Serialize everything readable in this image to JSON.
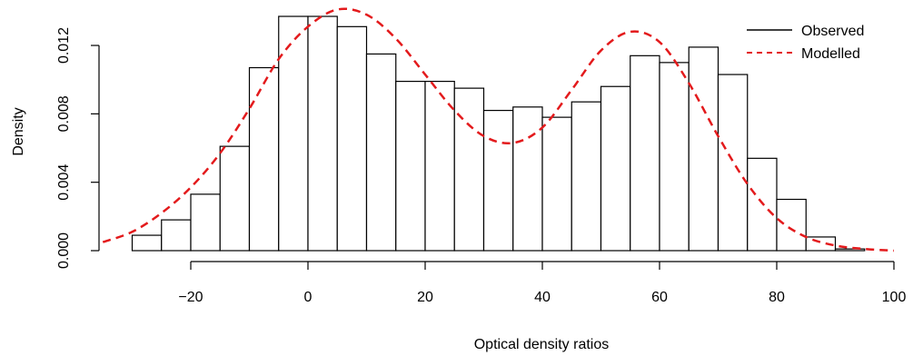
{
  "chart_data": {
    "type": "histogram",
    "title": "",
    "xlabel": "Optical density ratios",
    "ylabel": "Density",
    "xlim": [
      -35,
      100
    ],
    "ylim": [
      0,
      0.014
    ],
    "x_ticks": [
      -20,
      0,
      20,
      40,
      60,
      80,
      100
    ],
    "x_tick_labels": [
      "−20",
      "0",
      "20",
      "40",
      "60",
      "80",
      "100"
    ],
    "y_ticks": [
      0,
      0.004,
      0.008,
      0.012
    ],
    "y_tick_labels": [
      "0.000",
      "0.004",
      "0.008",
      "0.012"
    ],
    "bin_width": 5,
    "bins": [
      {
        "x0": -30,
        "x1": -25,
        "density": 0.0009
      },
      {
        "x0": -25,
        "x1": -20,
        "density": 0.0018
      },
      {
        "x0": -20,
        "x1": -15,
        "density": 0.0033
      },
      {
        "x0": -15,
        "x1": -10,
        "density": 0.0061
      },
      {
        "x0": -10,
        "x1": -5,
        "density": 0.0107
      },
      {
        "x0": -5,
        "x1": 0,
        "density": 0.0137
      },
      {
        "x0": 0,
        "x1": 5,
        "density": 0.0137
      },
      {
        "x0": 5,
        "x1": 10,
        "density": 0.0131
      },
      {
        "x0": 10,
        "x1": 15,
        "density": 0.0115
      },
      {
        "x0": 15,
        "x1": 20,
        "density": 0.0099
      },
      {
        "x0": 20,
        "x1": 25,
        "density": 0.0099
      },
      {
        "x0": 25,
        "x1": 30,
        "density": 0.0095
      },
      {
        "x0": 30,
        "x1": 35,
        "density": 0.0082
      },
      {
        "x0": 35,
        "x1": 40,
        "density": 0.0084
      },
      {
        "x0": 40,
        "x1": 45,
        "density": 0.0078
      },
      {
        "x0": 45,
        "x1": 50,
        "density": 0.0087
      },
      {
        "x0": 50,
        "x1": 55,
        "density": 0.0096
      },
      {
        "x0": 55,
        "x1": 60,
        "density": 0.0114
      },
      {
        "x0": 60,
        "x1": 65,
        "density": 0.011
      },
      {
        "x0": 65,
        "x1": 70,
        "density": 0.0119
      },
      {
        "x0": 70,
        "x1": 75,
        "density": 0.0103
      },
      {
        "x0": 75,
        "x1": 80,
        "density": 0.0054
      },
      {
        "x0": 80,
        "x1": 85,
        "density": 0.003
      },
      {
        "x0": 85,
        "x1": 90,
        "density": 0.0008
      },
      {
        "x0": 90,
        "x1": 95,
        "density": 0.0001
      }
    ],
    "series": [
      {
        "name": "Observed",
        "kind": "histogram",
        "color": "#000000",
        "line_style": "solid"
      },
      {
        "name": "Modelled",
        "kind": "density-curve",
        "color": "#e31a1c",
        "line_style": "dashed",
        "x": [
          -35,
          -30,
          -25,
          -20,
          -15,
          -10,
          -5,
          0,
          5,
          10,
          15,
          20,
          25,
          30,
          35,
          40,
          45,
          50,
          55,
          60,
          65,
          70,
          75,
          80,
          85,
          90,
          95,
          100
        ],
        "y": [
          0.0005,
          0.0011,
          0.0022,
          0.0037,
          0.0057,
          0.0083,
          0.0112,
          0.0131,
          0.0141,
          0.0138,
          0.0124,
          0.0103,
          0.0082,
          0.0067,
          0.0063,
          0.0072,
          0.0094,
          0.0117,
          0.0128,
          0.0122,
          0.0098,
          0.0067,
          0.0039,
          0.0019,
          0.0008,
          0.0003,
          0.0001,
          0.0
        ]
      }
    ],
    "legend": {
      "position": "top-right",
      "entries": [
        {
          "label": "Observed",
          "color": "#000000",
          "line_style": "solid"
        },
        {
          "label": "Modelled",
          "color": "#e31a1c",
          "line_style": "dashed"
        }
      ]
    },
    "grid": false
  }
}
